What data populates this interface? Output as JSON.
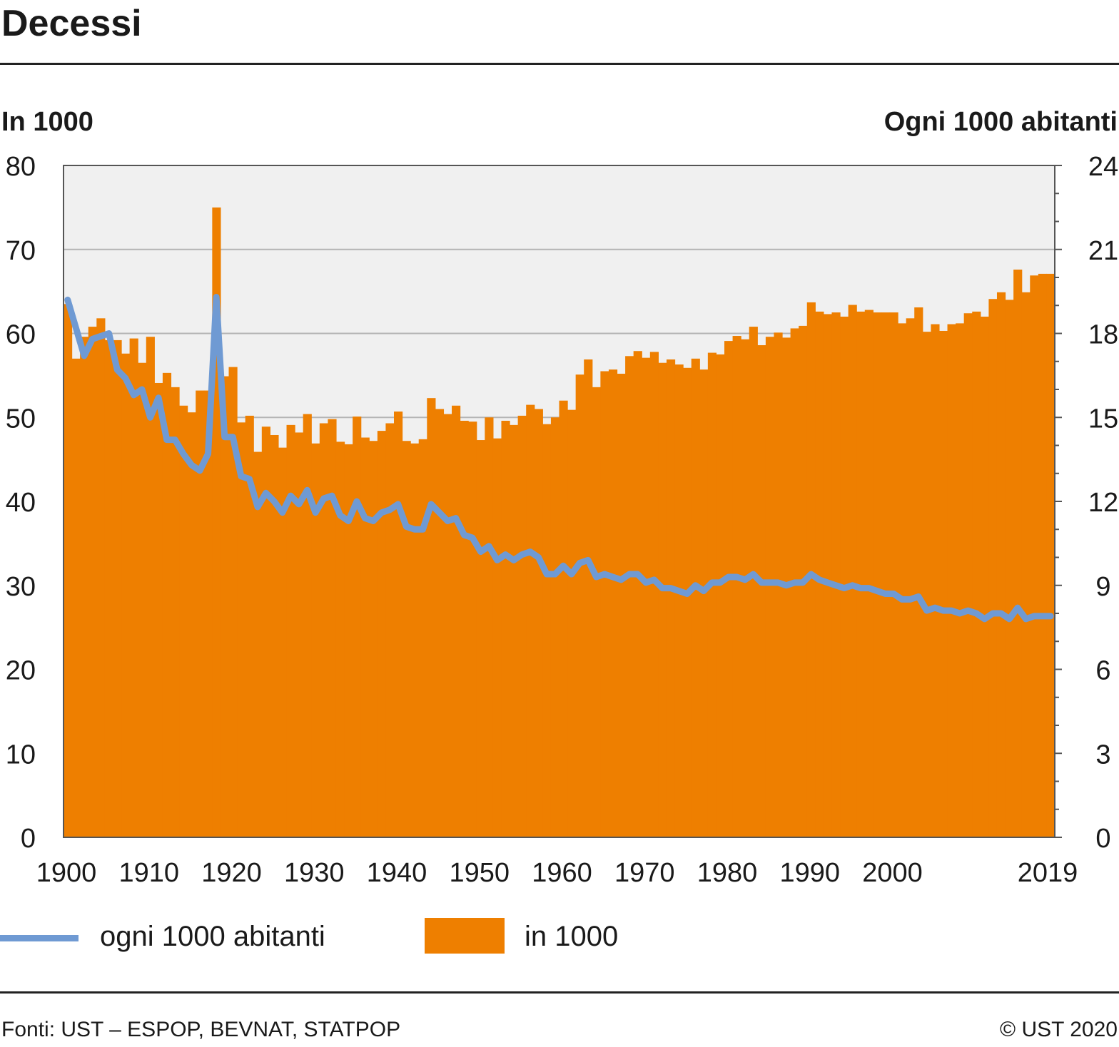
{
  "title": "Decessi",
  "source": "Fonti: UST – ESPOP, BEVNAT, STATPOP",
  "copyright": "© UST 2020",
  "colors": {
    "bars": "#ee7f00",
    "line": "#6f9ad3",
    "plot_bg": "#f0f0f0",
    "grid": "#b4b4b4"
  },
  "chart_data": {
    "type": "bar",
    "title": "Decessi",
    "ylabel_left": "In 1000",
    "ylabel_right": "Ogni 1000 abitanti",
    "ylim_left": [
      0,
      80
    ],
    "ylim_right": [
      0,
      24
    ],
    "yticks_left": [
      "0",
      "10",
      "20",
      "30",
      "40",
      "50",
      "60",
      "70",
      "80"
    ],
    "yticks_right": [
      "0",
      "3",
      "6",
      "9",
      "12",
      "15",
      "18",
      "21",
      "24"
    ],
    "xticks": [
      "1900",
      "1910",
      "1920",
      "1930",
      "1940",
      "1950",
      "1960",
      "1970",
      "1980",
      "1990",
      "2000",
      "2019"
    ],
    "x_start": 1900,
    "x_end": 2019,
    "grid": true,
    "legend_position": "bottom",
    "series": [
      {
        "name": "in 1000",
        "type": "bar",
        "axis": "left",
        "values": [
          63.5,
          57.0,
          59.6,
          60.8,
          61.8,
          59.2,
          59.2,
          57.6,
          59.4,
          56.5,
          59.6,
          54.1,
          55.3,
          53.6,
          51.4,
          50.6,
          53.2,
          53.2,
          75.0,
          54.9,
          56.0,
          49.4,
          50.2,
          45.9,
          48.9,
          47.9,
          46.4,
          49.1,
          48.2,
          50.4,
          46.9,
          49.3,
          49.8,
          47.1,
          46.8,
          50.1,
          47.6,
          47.2,
          48.4,
          49.3,
          50.7,
          47.2,
          46.9,
          47.4,
          52.3,
          51.0,
          50.4,
          51.4,
          49.6,
          49.5,
          47.3,
          50.0,
          47.5,
          49.6,
          49.1,
          50.2,
          51.5,
          51.0,
          49.2,
          50.0,
          52.0,
          50.9,
          55.1,
          56.9,
          53.6,
          55.5,
          55.7,
          55.2,
          57.3,
          57.9,
          57.1,
          57.8,
          56.5,
          56.9,
          56.3,
          55.9,
          57.0,
          55.7,
          57.7,
          57.5,
          59.1,
          59.7,
          59.3,
          60.8,
          58.6,
          59.6,
          60.1,
          59.5,
          60.6,
          60.9,
          63.7,
          62.6,
          62.3,
          62.5,
          62.0,
          63.4,
          62.6,
          62.8,
          62.5,
          62.5,
          62.5,
          61.2,
          61.8,
          63.1,
          60.2,
          61.1,
          60.3,
          61.1,
          61.2,
          62.4,
          62.6,
          62.0,
          64.1,
          64.9,
          64.0,
          67.6,
          64.9,
          66.9,
          67.1,
          67.1
        ]
      },
      {
        "name": "ogni 1000 abitanti",
        "type": "line",
        "axis": "right",
        "values": [
          19.2,
          18.2,
          17.2,
          17.8,
          17.9,
          18.0,
          16.7,
          16.4,
          15.8,
          16.0,
          15.0,
          15.7,
          14.2,
          14.2,
          13.7,
          13.3,
          13.1,
          13.7,
          19.3,
          14.3,
          14.3,
          12.9,
          12.8,
          11.8,
          12.3,
          12.0,
          11.6,
          12.2,
          11.9,
          12.4,
          11.6,
          12.1,
          12.2,
          11.5,
          11.3,
          12.0,
          11.4,
          11.3,
          11.6,
          11.7,
          11.9,
          11.1,
          11.0,
          11.0,
          11.9,
          11.6,
          11.3,
          11.4,
          10.8,
          10.7,
          10.2,
          10.4,
          9.9,
          10.1,
          9.9,
          10.1,
          10.2,
          10.0,
          9.4,
          9.4,
          9.7,
          9.4,
          9.8,
          9.9,
          9.3,
          9.4,
          9.3,
          9.2,
          9.4,
          9.4,
          9.1,
          9.2,
          8.9,
          8.9,
          8.8,
          8.7,
          9.0,
          8.8,
          9.1,
          9.1,
          9.3,
          9.3,
          9.2,
          9.4,
          9.1,
          9.1,
          9.1,
          9.0,
          9.1,
          9.1,
          9.4,
          9.2,
          9.1,
          9.0,
          8.9,
          9.0,
          8.9,
          8.9,
          8.8,
          8.7,
          8.7,
          8.5,
          8.5,
          8.6,
          8.1,
          8.2,
          8.1,
          8.1,
          8.0,
          8.1,
          8.0,
          7.8,
          8.0,
          8.0,
          7.8,
          8.2,
          7.8,
          7.9,
          7.9,
          7.9
        ]
      }
    ]
  }
}
